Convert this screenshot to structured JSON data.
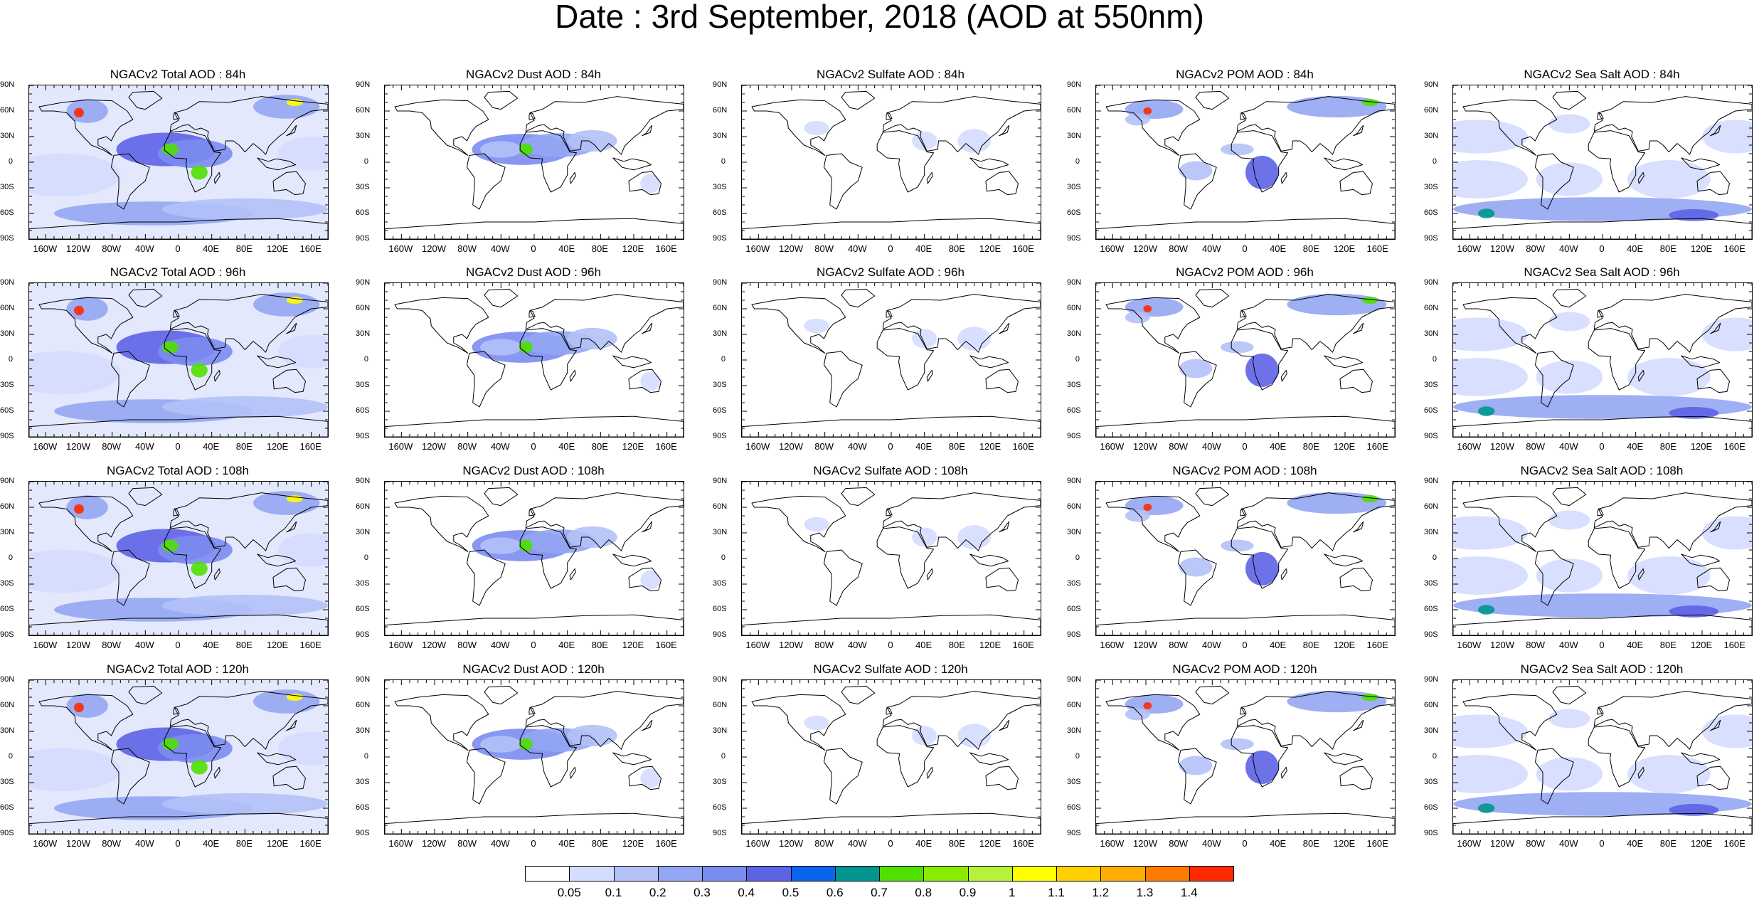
{
  "title": "Date : 3rd September, 2018 (AOD at 550nm)",
  "lat_ticks": [
    "90N",
    "60N",
    "30N",
    "0",
    "30S",
    "60S",
    "90S"
  ],
  "lon_ticks": [
    "160W",
    "120W",
    "80W",
    "40W",
    "0",
    "40E",
    "80E",
    "120E",
    "160E"
  ],
  "panels": [
    {
      "title": "NGACv2 Total AOD : 84h",
      "field": "total"
    },
    {
      "title": "NGACv2 Dust AOD : 84h",
      "field": "dust"
    },
    {
      "title": "NGACv2 Sulfate AOD : 84h",
      "field": "sulfate"
    },
    {
      "title": "NGACv2 POM AOD : 84h",
      "field": "pom"
    },
    {
      "title": "NGACv2 Sea Salt AOD : 84h",
      "field": "seasalt"
    },
    {
      "title": "NGACv2 Total AOD : 96h",
      "field": "total"
    },
    {
      "title": "NGACv2 Dust AOD : 96h",
      "field": "dust"
    },
    {
      "title": "NGACv2 Sulfate AOD : 96h",
      "field": "sulfate"
    },
    {
      "title": "NGACv2 POM AOD : 96h",
      "field": "pom"
    },
    {
      "title": "NGACv2 Sea Salt AOD : 96h",
      "field": "seasalt"
    },
    {
      "title": "NGACv2 Total AOD : 108h",
      "field": "total"
    },
    {
      "title": "NGACv2 Dust AOD : 108h",
      "field": "dust"
    },
    {
      "title": "NGACv2 Sulfate AOD : 108h",
      "field": "sulfate"
    },
    {
      "title": "NGACv2 POM AOD : 108h",
      "field": "pom"
    },
    {
      "title": "NGACv2 Sea Salt AOD : 108h",
      "field": "seasalt"
    },
    {
      "title": "NGACv2 Total AOD : 120h",
      "field": "total"
    },
    {
      "title": "NGACv2 Dust AOD : 120h",
      "field": "dust"
    },
    {
      "title": "NGACv2 Sulfate AOD : 120h",
      "field": "sulfate"
    },
    {
      "title": "NGACv2 POM AOD : 120h",
      "field": "pom"
    },
    {
      "title": "NGACv2 Sea Salt  AOD : 120h",
      "field": "seasalt"
    }
  ],
  "colorbar": {
    "labels": [
      "0.05",
      "0.1",
      "0.2",
      "0.3",
      "0.4",
      "0.5",
      "0.6",
      "0.7",
      "0.8",
      "0.9",
      "1",
      "1.1",
      "1.2",
      "1.3",
      "1.4"
    ],
    "colors": [
      "#ffffff",
      "#d4dcff",
      "#b3c1f7",
      "#93a6f3",
      "#7b8cef",
      "#5d63e6",
      "#0a64f0",
      "#00968f",
      "#4fe000",
      "#8aeb00",
      "#b6f23c",
      "#ffff00",
      "#ffd000",
      "#ffac00",
      "#ff7b00",
      "#ff2a00"
    ]
  }
}
